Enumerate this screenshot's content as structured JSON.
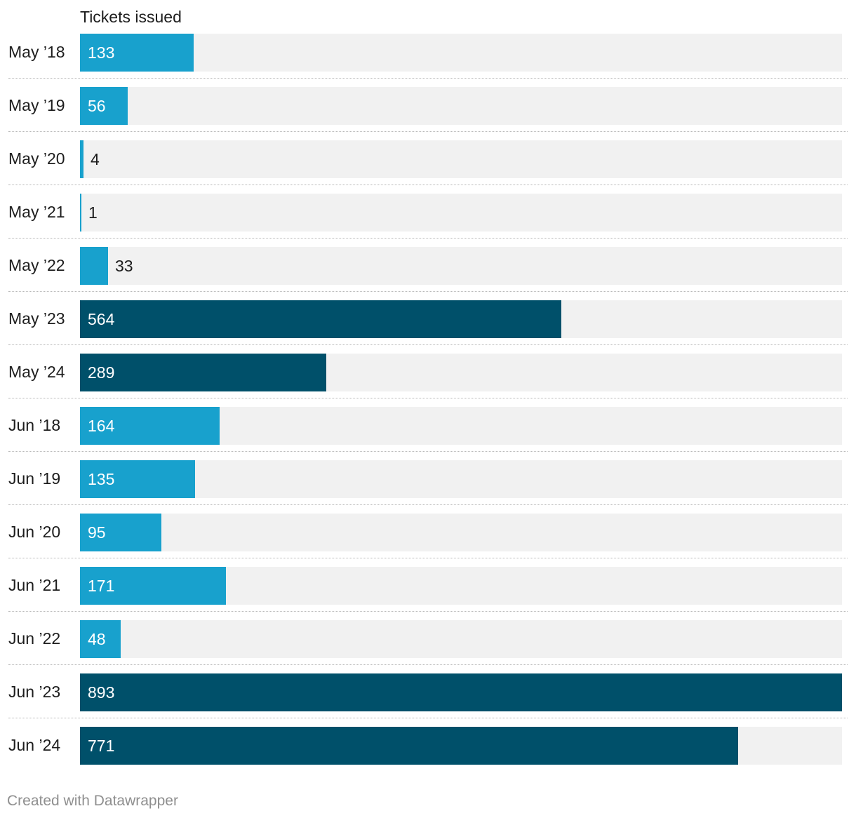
{
  "chart_data": {
    "type": "bar",
    "orientation": "horizontal",
    "column_header": "Tickets issued",
    "xlim": [
      0,
      893
    ],
    "categories": [
      "May ’18",
      "May ’19",
      "May ’20",
      "May ’21",
      "May ’22",
      "May ’23",
      "May ’24",
      "Jun ’18",
      "Jun ’19",
      "Jun ’20",
      "Jun ’21",
      "Jun ’22",
      "Jun ’23",
      "Jun ’24"
    ],
    "values": [
      133,
      56,
      4,
      1,
      33,
      564,
      289,
      164,
      135,
      95,
      171,
      48,
      893,
      771
    ],
    "highlighted": [
      false,
      false,
      false,
      false,
      false,
      true,
      true,
      false,
      false,
      false,
      false,
      false,
      true,
      true
    ]
  },
  "colors": {
    "bar_default": "#18a1cd",
    "bar_highlight": "#00506a",
    "track": "#f1f1f1",
    "label_inside": "#ffffff",
    "label_outside": "#1d1d1d"
  },
  "footer": {
    "credit": "Created with Datawrapper"
  }
}
